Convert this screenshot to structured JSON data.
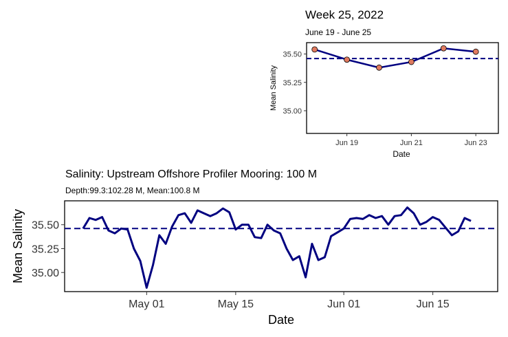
{
  "chart_data": [
    {
      "type": "line",
      "title": "Week 25, 2022",
      "subtitle": "June 19 - June 25",
      "xlabel": "Date",
      "ylabel": "Mean Salinity",
      "x_ticks": [
        "Jun 19",
        "Jun 21",
        "Jun 23"
      ],
      "y_ticks": [
        "35.00",
        "35.25",
        "35.50"
      ],
      "ylim": [
        34.8,
        35.6
      ],
      "mean": 35.46,
      "series": [
        {
          "x": [
            "2022-06-18",
            "2022-06-19",
            "2022-06-20",
            "2022-06-21",
            "2022-06-22",
            "2022-06-23"
          ],
          "values": [
            35.54,
            35.45,
            35.38,
            35.43,
            35.55,
            35.52
          ]
        }
      ],
      "colors": {
        "line": "#000080",
        "marker": "#E07A5F",
        "mean_line": "#000080"
      },
      "grid": false
    },
    {
      "type": "line",
      "title": "Salinity: Upstream Offshore Profiler Mooring: 100 M",
      "subtitle": "Depth:99.3:102.28 M, Mean:100.8 M",
      "xlabel": "Date",
      "ylabel": "Mean Salinity",
      "x_ticks": [
        "May 01",
        "May 15",
        "Jun 01",
        "Jun 15"
      ],
      "y_ticks": [
        "35.00",
        "35.25",
        "35.50"
      ],
      "ylim": [
        34.8,
        35.75
      ],
      "mean": 35.46,
      "series": [
        {
          "x_start": "2022-04-21",
          "values": [
            35.46,
            35.57,
            35.55,
            35.58,
            35.44,
            35.41,
            35.46,
            35.45,
            35.25,
            35.12,
            34.84,
            35.08,
            35.39,
            35.3,
            35.48,
            35.6,
            35.62,
            35.52,
            35.65,
            35.62,
            35.59,
            35.62,
            35.67,
            35.63,
            35.45,
            35.5,
            35.5,
            35.37,
            35.36,
            35.5,
            35.44,
            35.41,
            35.25,
            35.13,
            35.17,
            34.95,
            35.3,
            35.13,
            35.16,
            35.38,
            35.42,
            35.46,
            35.56,
            35.57,
            35.56,
            35.6,
            35.57,
            35.59,
            35.5,
            35.59,
            35.6,
            35.68,
            35.62,
            35.5,
            35.53,
            35.58,
            35.55,
            35.47,
            35.39,
            35.43,
            35.57,
            35.54
          ]
        }
      ],
      "colors": {
        "line": "#000080",
        "mean_line": "#000080"
      },
      "grid": false
    }
  ]
}
